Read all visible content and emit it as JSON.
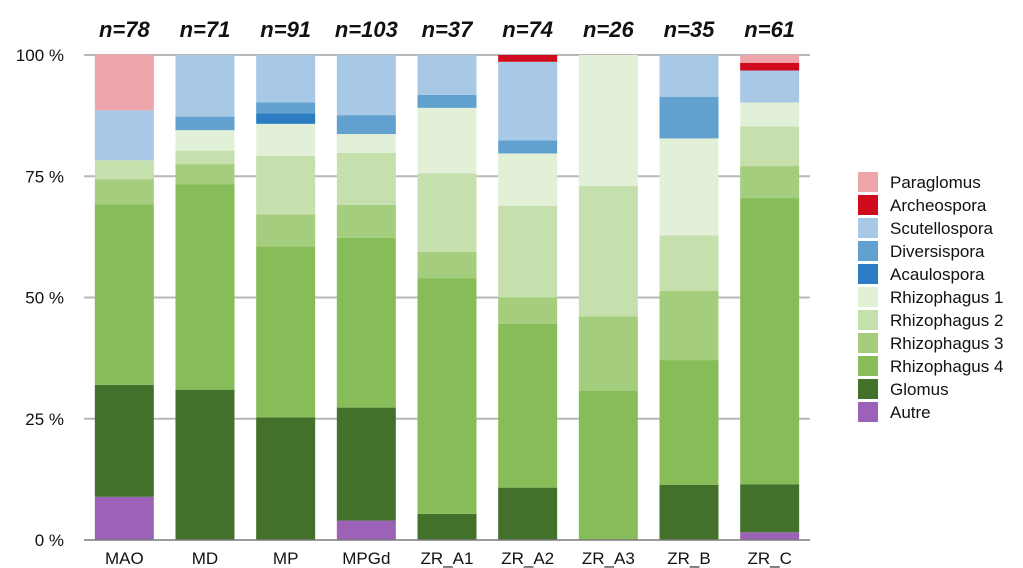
{
  "chart_data": {
    "type": "bar",
    "stacked": true,
    "categories": [
      "MAO",
      "MD",
      "MP",
      "MPGd",
      "ZR_A1",
      "ZR_A2",
      "ZR_A3",
      "ZR_B",
      "ZR_C"
    ],
    "sample_sizes": [
      "n=78",
      "n=71",
      "n=91",
      "n=103",
      "n=37",
      "n=74",
      "n=26",
      "n=35",
      "n=61"
    ],
    "y_ticks": [
      {
        "value": 0,
        "label": "0 %"
      },
      {
        "value": 25,
        "label": "25 %"
      },
      {
        "value": 50,
        "label": "50 %"
      },
      {
        "value": 75,
        "label": "75 %"
      },
      {
        "value": 100,
        "label": "100 %"
      }
    ],
    "ylim": [
      0,
      100
    ],
    "grid": true,
    "legend_position": "right",
    "series": [
      {
        "name": "Autre",
        "color": "#9b62b8",
        "values": [
          8.9,
          0,
          0,
          4.0,
          0,
          0,
          0,
          0,
          1.6
        ]
      },
      {
        "name": "Glomus",
        "color": "#43712c",
        "values": [
          23.1,
          31.0,
          25.3,
          23.3,
          5.4,
          10.8,
          0,
          11.4,
          9.9
        ]
      },
      {
        "name": "Rhizophagus 4",
        "color": "#87bd58",
        "values": [
          37.2,
          42.3,
          35.2,
          35.0,
          48.6,
          33.8,
          30.8,
          25.7,
          59.0
        ]
      },
      {
        "name": "Rhizophagus 3",
        "color": "#a4cd7d",
        "values": [
          5.2,
          4.2,
          6.6,
          6.8,
          5.4,
          5.4,
          15.3,
          14.3,
          6.6
        ]
      },
      {
        "name": "Rhizophagus 2",
        "color": "#c5e0ac",
        "values": [
          3.9,
          2.8,
          12.1,
          10.7,
          16.2,
          18.9,
          26.9,
          11.4,
          8.2
        ]
      },
      {
        "name": "Rhizophagus 1",
        "color": "#e3f0d8",
        "values": [
          0,
          4.2,
          6.6,
          3.9,
          13.5,
          10.8,
          27.0,
          20.0,
          4.9
        ]
      },
      {
        "name": "Acaulospora",
        "color": "#2c7dc3",
        "values": [
          0,
          0,
          2.2,
          0,
          0,
          0,
          0,
          0,
          0
        ]
      },
      {
        "name": "Diversispora",
        "color": "#62a0d0",
        "values": [
          0,
          2.8,
          2.2,
          3.9,
          2.7,
          2.7,
          0,
          8.6,
          0
        ]
      },
      {
        "name": "Scutellospora",
        "color": "#a8c9e6",
        "values": [
          10.3,
          12.7,
          9.8,
          12.4,
          8.2,
          16.2,
          0,
          8.6,
          6.6
        ]
      },
      {
        "name": "Archeospora",
        "color": "#cf0a1d",
        "values": [
          0,
          0,
          0,
          0,
          0,
          1.4,
          0,
          0,
          1.6
        ]
      },
      {
        "name": "Paraglomus",
        "color": "#eda4aa",
        "values": [
          11.5,
          0,
          0,
          0,
          0,
          0,
          0,
          0,
          1.6
        ]
      }
    ],
    "legend_order": [
      "Paraglomus",
      "Archeospora",
      "Scutellospora",
      "Diversispora",
      "Acaulospora",
      "Rhizophagus 1",
      "Rhizophagus 2",
      "Rhizophagus 3",
      "Rhizophagus 4",
      "Glomus",
      "Autre"
    ],
    "gridline_color": "#b8b8b8",
    "axis_color": "#7a7a7a",
    "text_color": "#111111"
  }
}
